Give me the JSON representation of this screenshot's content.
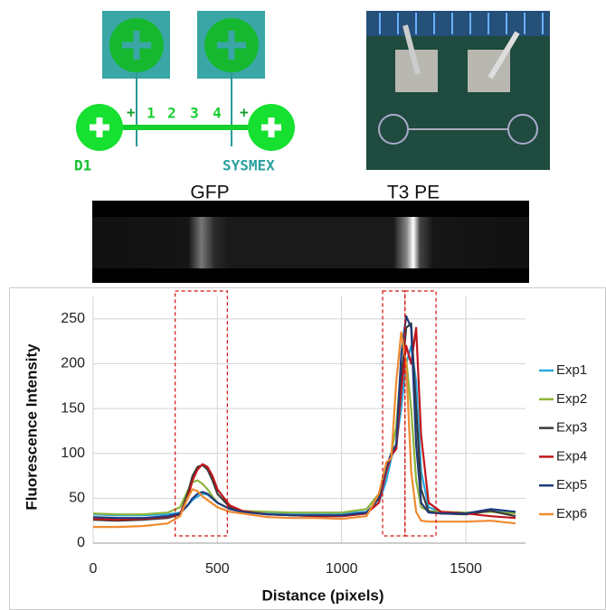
{
  "diagram": {
    "left_label": "D1",
    "right_label": "SYSMEX",
    "plus_marks": [
      "+",
      "+"
    ],
    "numbers": [
      "1",
      "2",
      "3",
      "4"
    ]
  },
  "gel": {
    "labels": [
      "GFP",
      "T3 PE"
    ]
  },
  "chart_data": {
    "type": "line",
    "y_label": "Fluorescence Intensity",
    "x_label": "Distance (pixels)",
    "xlim": [
      0,
      1740
    ],
    "xticks": [
      0,
      500,
      1000,
      1500
    ],
    "ylim": [
      0,
      275
    ],
    "yticks": [
      0,
      50,
      100,
      150,
      200,
      250
    ],
    "grid": true,
    "legend": "right",
    "highlight_ranges": [
      [
        330,
        540
      ],
      [
        1165,
        1255
      ],
      [
        1255,
        1380
      ]
    ],
    "x": [
      0,
      100,
      200,
      300,
      350,
      380,
      400,
      420,
      440,
      460,
      480,
      500,
      550,
      600,
      700,
      800,
      900,
      1000,
      1100,
      1150,
      1180,
      1200,
      1220,
      1240,
      1260,
      1280,
      1300,
      1320,
      1350,
      1400,
      1500,
      1600,
      1700
    ],
    "series": [
      {
        "name": "Exp1",
        "color": "#29a8e0",
        "values": [
          32,
          31,
          31,
          32,
          34,
          42,
          48,
          52,
          55,
          54,
          50,
          45,
          38,
          35,
          34,
          33,
          33,
          33,
          35,
          45,
          70,
          95,
          110,
          150,
          200,
          220,
          180,
          80,
          40,
          35,
          33,
          36,
          34
        ]
      },
      {
        "name": "Exp2",
        "color": "#8cb43c",
        "values": [
          33,
          32,
          32,
          34,
          40,
          58,
          68,
          70,
          66,
          60,
          52,
          45,
          38,
          36,
          35,
          34,
          34,
          34,
          38,
          55,
          85,
          100,
          130,
          200,
          205,
          150,
          70,
          40,
          36,
          35,
          34,
          35,
          33
        ]
      },
      {
        "name": "Exp3",
        "color": "#3a3a3a",
        "values": [
          26,
          25,
          26,
          28,
          32,
          55,
          75,
          85,
          87,
          82,
          70,
          55,
          40,
          35,
          32,
          31,
          30,
          30,
          33,
          50,
          85,
          100,
          105,
          180,
          240,
          245,
          150,
          60,
          35,
          33,
          32,
          36,
          30
        ]
      },
      {
        "name": "Exp4",
        "color": "#c0161c",
        "values": [
          27,
          26,
          27,
          29,
          33,
          50,
          70,
          82,
          88,
          85,
          75,
          60,
          42,
          36,
          32,
          31,
          30,
          30,
          33,
          45,
          80,
          98,
          105,
          170,
          220,
          200,
          240,
          120,
          45,
          35,
          33,
          30,
          28
        ]
      },
      {
        "name": "Exp5",
        "color": "#1f3a7a",
        "values": [
          29,
          28,
          28,
          30,
          33,
          42,
          50,
          55,
          57,
          55,
          50,
          45,
          38,
          35,
          32,
          31,
          31,
          31,
          34,
          50,
          85,
          100,
          110,
          210,
          253,
          240,
          110,
          45,
          34,
          33,
          33,
          38,
          35
        ]
      },
      {
        "name": "Exp6",
        "color": "#f08a30",
        "values": [
          18,
          18,
          19,
          22,
          30,
          50,
          60,
          58,
          52,
          48,
          44,
          40,
          35,
          33,
          29,
          28,
          28,
          27,
          30,
          55,
          90,
          95,
          180,
          235,
          200,
          80,
          35,
          25,
          24,
          24,
          24,
          25,
          22
        ]
      }
    ]
  }
}
